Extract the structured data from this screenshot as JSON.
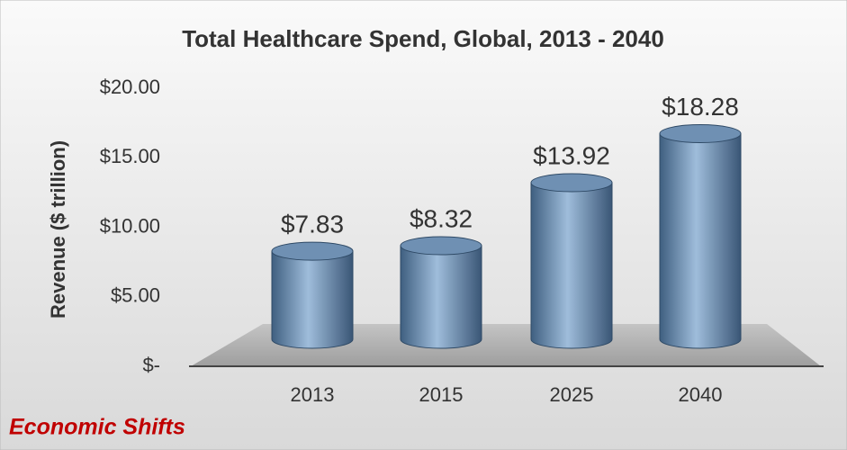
{
  "chart_data": {
    "type": "bar",
    "title": "Total Healthcare Spend, Global, 2013 - 2040",
    "y_axis_label": "Revenue ($ trillion)",
    "annotation": "Economic Shifts",
    "categories": [
      "2013",
      "2015",
      "2025",
      "2040"
    ],
    "values": [
      7.83,
      8.32,
      13.92,
      18.28
    ],
    "value_labels": [
      "$7.83",
      "$8.32",
      "$13.92",
      "$18.28"
    ],
    "color": "#6f90b3",
    "ylim": [
      0,
      20
    ],
    "yticks": [
      {
        "value": 0,
        "label": "$-"
      },
      {
        "value": 5,
        "label": "$5.00"
      },
      {
        "value": 10,
        "label": "$10.00"
      },
      {
        "value": 15,
        "label": "$15.00"
      },
      {
        "value": 20,
        "label": "$20.00"
      }
    ],
    "grid": true
  }
}
